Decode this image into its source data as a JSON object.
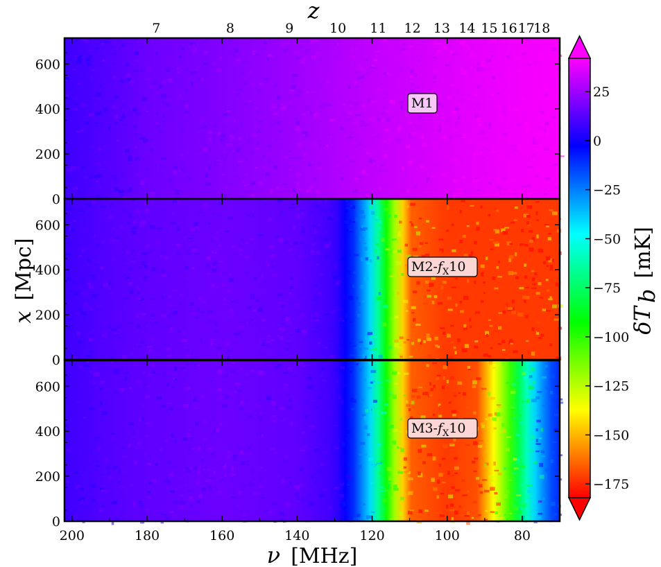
{
  "chart_data": {
    "type": "heatmap",
    "x_axis": {
      "label_symbol": "ν",
      "label_unit": "[MHz]",
      "range": [
        202,
        70
      ],
      "ticks": [
        200,
        180,
        160,
        140,
        120,
        100,
        80
      ],
      "tick_labels": [
        "200",
        "180",
        "160",
        "140",
        "120",
        "100",
        "80"
      ]
    },
    "top_axis": {
      "label": "z",
      "ticks": [
        7,
        8,
        9,
        10,
        11,
        12,
        13,
        14,
        15,
        16,
        17,
        18
      ],
      "tick_labels": [
        "7",
        "8",
        "9",
        "10",
        "11",
        "12",
        "13",
        "14",
        "15",
        "16",
        "17",
        "18"
      ]
    },
    "y_axis": {
      "label_symbol": "x",
      "label_unit": "[Mpc]",
      "range": [
        0,
        715
      ],
      "ticks": [
        0,
        200,
        400,
        600
      ],
      "tick_labels": [
        "0",
        "200",
        "400",
        "600"
      ]
    },
    "colorbar": {
      "label_symbol": "δT",
      "label_subscript": "b",
      "label_unit": "[mK]",
      "range": [
        -182,
        42
      ],
      "extend": "both",
      "ticks": [
        25,
        0,
        -25,
        -50,
        -75,
        -100,
        -125,
        -150,
        -175
      ],
      "tick_labels": [
        "25",
        "0",
        "−25",
        "−50",
        "−75",
        "−100",
        "−125",
        "−150",
        "−175"
      ],
      "colormap": "gist_rainbow (red → yellow → green → cyan → blue → violet → magenta)"
    },
    "panels": [
      {
        "label": "M1",
        "label_main": "M1",
        "label_sub": "",
        "label_tail": "",
        "label_bg": "#f9c6f9",
        "profile": {
          "freq_MHz": [
            202,
            190,
            180,
            160,
            140,
            120,
            100,
            85,
            70
          ],
          "dTb_mK": [
            8,
            12,
            16,
            20,
            25,
            31,
            36,
            39,
            41
          ]
        }
      },
      {
        "label": "M2-fX10",
        "label_main": "M2-",
        "label_sub": "X",
        "label_tail": "10",
        "label_bg": "#fcd6d4",
        "profile": {
          "freq_MHz": [
            202,
            190,
            180,
            160,
            140,
            130,
            125,
            120,
            115,
            110,
            100,
            85,
            70
          ],
          "dTb_mK": [
            8,
            12,
            14,
            16,
            14,
            8,
            -10,
            -45,
            -110,
            -165,
            -172,
            -172,
            -172
          ]
        }
      },
      {
        "label": "M3-fX10",
        "label_main": "M3-",
        "label_sub": "X",
        "label_tail": "10",
        "label_bg": "#fcd6d4",
        "profile": {
          "freq_MHz": [
            202,
            190,
            180,
            160,
            140,
            130,
            125,
            120,
            115,
            110,
            100,
            92,
            88,
            84,
            80,
            76,
            72,
            70
          ],
          "dTb_mK": [
            8,
            12,
            14,
            16,
            14,
            8,
            -10,
            -45,
            -110,
            -165,
            -172,
            -168,
            -140,
            -110,
            -70,
            -35,
            -15,
            -10
          ]
        }
      }
    ]
  }
}
